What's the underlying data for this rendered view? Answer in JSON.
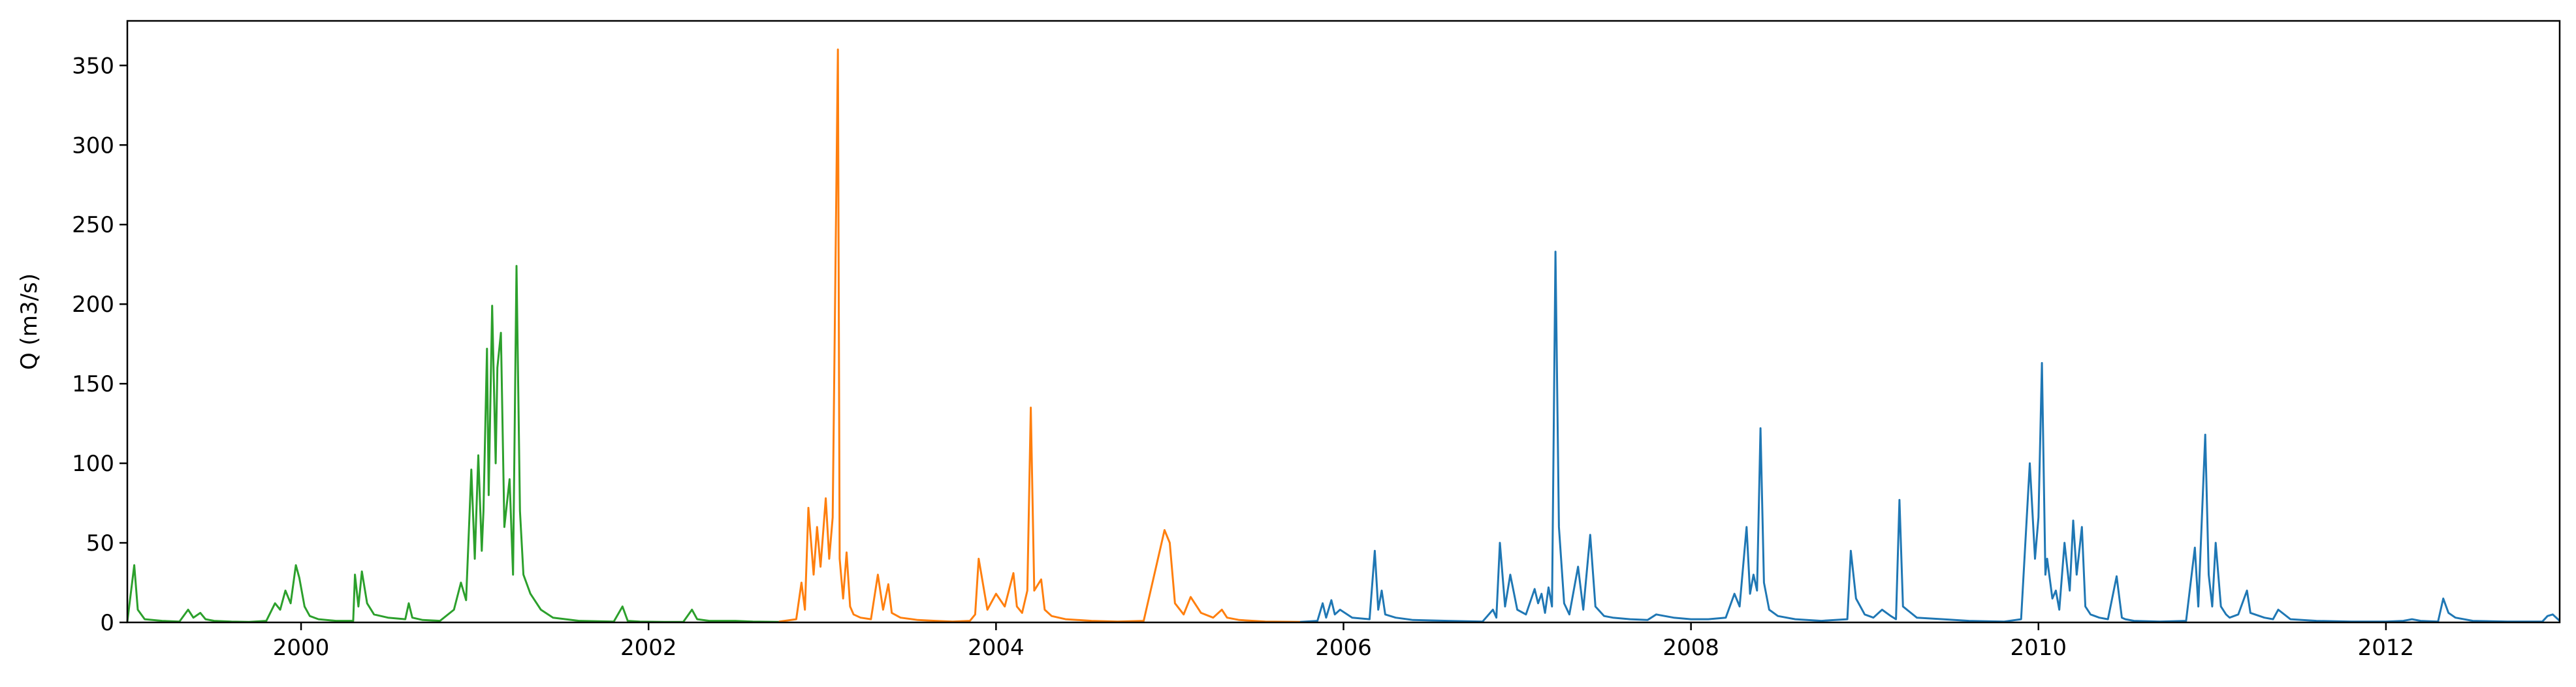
{
  "chart_data": {
    "type": "line",
    "title": "",
    "xlabel": "",
    "ylabel": "Q (m3/s)",
    "xlim": [
      1999.0,
      2013.0
    ],
    "ylim": [
      0,
      378
    ],
    "x_ticks": [
      2000,
      2002,
      2004,
      2006,
      2008,
      2010,
      2012
    ],
    "x_tick_labels": [
      "2000",
      "2002",
      "2004",
      "2006",
      "2008",
      "2010",
      "2012"
    ],
    "y_ticks": [
      0,
      50,
      100,
      150,
      200,
      250,
      300,
      350
    ],
    "y_tick_labels": [
      "0",
      "50",
      "100",
      "150",
      "200",
      "250",
      "300",
      "350"
    ],
    "grid": false,
    "legend": "none",
    "series": [
      {
        "color": "#2ca02c",
        "x": [
          1999.0,
          1999.04,
          1999.06,
          1999.1,
          1999.2,
          1999.3,
          1999.35,
          1999.38,
          1999.42,
          1999.45,
          1999.5,
          1999.6,
          1999.7,
          1999.8,
          1999.85,
          1999.88,
          1999.91,
          1999.94,
          1999.97,
          1999.99,
          2000.02,
          2000.05,
          2000.1,
          2000.2,
          2000.3,
          2000.31,
          2000.33,
          2000.35,
          2000.38,
          2000.42,
          2000.5,
          2000.6,
          2000.62,
          2000.64,
          2000.7,
          2000.8,
          2000.88,
          2000.92,
          2000.95,
          2000.98,
          2001.0,
          2001.02,
          2001.04,
          2001.05,
          2001.07,
          2001.08,
          2001.1,
          2001.12,
          2001.13,
          2001.15,
          2001.17,
          2001.2,
          2001.22,
          2001.24,
          2001.26,
          2001.28,
          2001.32,
          2001.38,
          2001.45,
          2001.6,
          2001.8,
          2001.85,
          2001.88,
          2001.95,
          2002.1,
          2002.2,
          2002.25,
          2002.28,
          2002.35,
          2002.5,
          2002.6,
          2002.75
        ],
        "y": [
          0.5,
          36,
          8,
          2,
          1,
          0.5,
          8,
          3,
          6,
          2,
          1,
          0.5,
          0.3,
          1,
          12,
          8,
          20,
          12,
          36,
          28,
          10,
          4,
          2,
          1,
          1,
          30,
          10,
          32,
          12,
          5,
          3,
          2,
          12,
          3,
          1.5,
          1,
          8,
          25,
          14,
          96,
          40,
          105,
          45,
          70,
          172,
          80,
          199,
          100,
          160,
          182,
          60,
          90,
          30,
          224,
          70,
          30,
          18,
          8,
          3,
          1,
          0.5,
          10,
          1,
          0.5,
          0.3,
          0.3,
          8,
          2,
          1,
          1,
          0.5,
          0.3
        ]
      },
      {
        "color": "#ff7f0e",
        "x": [
          2002.75,
          2002.85,
          2002.88,
          2002.9,
          2002.92,
          2002.95,
          2002.97,
          2002.99,
          2003.02,
          2003.04,
          2003.06,
          2003.09,
          2003.1,
          2003.12,
          2003.14,
          2003.16,
          2003.18,
          2003.22,
          2003.28,
          2003.32,
          2003.35,
          2003.38,
          2003.4,
          2003.45,
          2003.55,
          2003.65,
          2003.75,
          2003.85,
          2003.88,
          2003.9,
          2003.95,
          2004.0,
          2004.05,
          2004.1,
          2004.12,
          2004.15,
          2004.18,
          2004.2,
          2004.22,
          2004.26,
          2004.28,
          2004.32,
          2004.4,
          2004.55,
          2004.7,
          2004.85,
          2004.97,
          2005.0,
          2005.03,
          2005.08,
          2005.12,
          2005.18,
          2005.25,
          2005.3,
          2005.33,
          2005.4,
          2005.55,
          2005.75
        ],
        "y": [
          0.5,
          2,
          25,
          8,
          72,
          30,
          60,
          35,
          78,
          40,
          66,
          360,
          40,
          15,
          44,
          10,
          5,
          3,
          2,
          30,
          8,
          24,
          6,
          3,
          1.5,
          1,
          0.5,
          1,
          5,
          40,
          8,
          18,
          10,
          31,
          10,
          6,
          20,
          135,
          20,
          27,
          8,
          4,
          2,
          1,
          0.5,
          1,
          58,
          50,
          12,
          5,
          16,
          6,
          3,
          8,
          3,
          1.5,
          0.5,
          0.3
        ]
      },
      {
        "color": "#1f77b4",
        "x": [
          2005.75,
          2005.85,
          2005.88,
          2005.9,
          2005.93,
          2005.95,
          2005.98,
          2006.05,
          2006.15,
          2006.18,
          2006.2,
          2006.22,
          2006.24,
          2006.3,
          2006.4,
          2006.6,
          2006.8,
          2006.86,
          2006.88,
          2006.9,
          2006.93,
          2006.96,
          2007.0,
          2007.05,
          2007.1,
          2007.12,
          2007.14,
          2007.16,
          2007.18,
          2007.2,
          2007.22,
          2007.24,
          2007.27,
          2007.3,
          2007.35,
          2007.38,
          2007.42,
          2007.45,
          2007.5,
          2007.55,
          2007.65,
          2007.75,
          2007.8,
          2007.9,
          2008.0,
          2008.1,
          2008.2,
          2008.25,
          2008.28,
          2008.32,
          2008.34,
          2008.36,
          2008.38,
          2008.4,
          2008.42,
          2008.45,
          2008.5,
          2008.6,
          2008.75,
          2008.9,
          2008.92,
          2008.95,
          2009.0,
          2009.05,
          2009.1,
          2009.15,
          2009.18,
          2009.2,
          2009.22,
          2009.3,
          2009.45,
          2009.6,
          2009.8,
          2009.9,
          2009.95,
          2009.98,
          2010.0,
          2010.02,
          2010.04,
          2010.05,
          2010.08,
          2010.1,
          2010.12,
          2010.15,
          2010.18,
          2010.2,
          2010.22,
          2010.25,
          2010.27,
          2010.3,
          2010.35,
          2010.4,
          2010.45,
          2010.48,
          2010.5,
          2010.55,
          2010.7,
          2010.85,
          2010.9,
          2010.92,
          2010.96,
          2010.98,
          2011.0,
          2011.02,
          2011.05,
          2011.08,
          2011.1,
          2011.15,
          2011.2,
          2011.22,
          2011.3,
          2011.35,
          2011.38,
          2011.45,
          2011.6,
          2011.8,
          2012.0,
          2012.1,
          2012.15,
          2012.2,
          2012.3,
          2012.33,
          2012.36,
          2012.4,
          2012.5,
          2012.7,
          2012.9,
          2012.93,
          2012.96,
          2013.0
        ],
        "y": [
          0.3,
          1,
          12,
          3,
          14,
          5,
          8,
          3,
          2,
          45,
          8,
          20,
          5,
          3,
          1.5,
          1,
          0.5,
          8,
          3,
          50,
          10,
          30,
          8,
          5,
          21,
          12,
          18,
          6,
          22,
          10,
          233,
          60,
          12,
          5,
          35,
          8,
          55,
          10,
          4,
          3,
          2,
          1.5,
          5,
          3,
          2,
          2,
          3,
          18,
          10,
          60,
          18,
          30,
          20,
          122,
          25,
          8,
          4,
          2,
          1,
          2,
          45,
          15,
          5,
          3,
          8,
          4,
          2,
          77,
          10,
          3,
          2,
          1,
          0.5,
          2,
          100,
          40,
          66,
          163,
          30,
          40,
          15,
          20,
          8,
          50,
          20,
          64,
          30,
          60,
          10,
          5,
          3,
          2,
          29,
          3,
          2,
          1,
          0.5,
          1,
          47,
          10,
          118,
          30,
          10,
          50,
          10,
          5,
          3,
          5,
          20,
          6,
          3,
          2,
          8,
          2,
          1,
          0.5,
          0.5,
          1,
          2,
          1,
          0.5,
          15,
          6,
          3,
          1,
          0.5,
          0.5,
          4,
          5,
          1
        ]
      }
    ]
  }
}
